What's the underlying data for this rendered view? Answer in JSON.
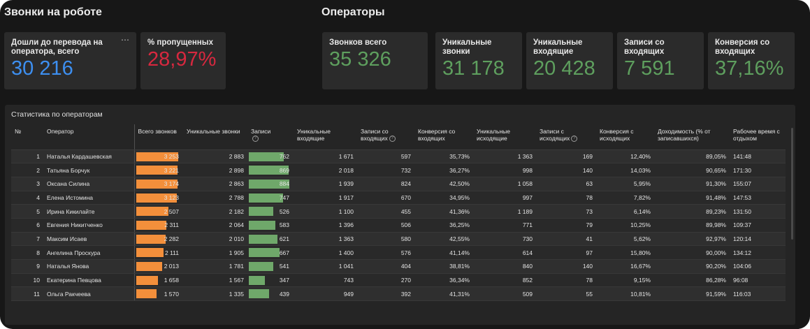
{
  "sections": {
    "calls_title": "Звонки на роботе",
    "operators_title": "Операторы"
  },
  "kpis": [
    {
      "label": "Дошли до перевода на оператора, всего",
      "value": "30 216",
      "color": "#3d8ff0"
    },
    {
      "label": "% пропущенных",
      "value": "28,97%",
      "color": "#d7283f"
    },
    {
      "label": "Звонков всего",
      "value": "35 326",
      "color": "#5e9f5e"
    },
    {
      "label": "Уникальные звонки",
      "value": "31 178",
      "color": "#5e9f5e"
    },
    {
      "label": "Уникальные входящие",
      "value": "20 428",
      "color": "#5e9f5e"
    },
    {
      "label": "Записи со входящих",
      "value": "7 591",
      "color": "#5e9f5e"
    },
    {
      "label": "Конверсия со входящих",
      "value": "37,16%",
      "color": "#5e9f5e"
    }
  ],
  "kpi_menu_icon": "more-horizontal-icon",
  "table": {
    "title": "Статистика по операторам",
    "columns": [
      "№",
      "Оператор",
      "Всего звонков",
      "Уникальные звонки",
      "Записи",
      "Уникальные входящие",
      "Записи со входящих",
      "Конверсия со входящих",
      "Уникальные исходящие",
      "Записи с исходящих",
      "Конверсия с исходящих",
      "Доходимость (% от записавшихся)",
      "Рабочее время с отдыхом"
    ],
    "help_icon": "question-circle-icon",
    "bar_colors": {
      "calls": "#f38f3b",
      "records": "#6fa86a"
    },
    "bar_max": {
      "calls": 3253,
      "records": 884
    },
    "rows": [
      {
        "n": "1",
        "name": "Наталья Кардашевская",
        "calls": "3 253",
        "calls_v": 3253,
        "unique": "2 883",
        "records": "762",
        "records_v": 762,
        "uniq_in": "1 671",
        "rec_in": "597",
        "conv_in": "35,73%",
        "uniq_out": "1 363",
        "rec_out": "169",
        "conv_out": "12,40%",
        "reach": "89,05%",
        "time": "141:48"
      },
      {
        "n": "2",
        "name": "Татьяна Борчук",
        "calls": "3 221",
        "calls_v": 3221,
        "unique": "2 898",
        "records": "869",
        "records_v": 869,
        "uniq_in": "2 018",
        "rec_in": "732",
        "conv_in": "36,27%",
        "uniq_out": "998",
        "rec_out": "140",
        "conv_out": "14,03%",
        "reach": "90,65%",
        "time": "171:30"
      },
      {
        "n": "3",
        "name": "Оксана Силина",
        "calls": "3 174",
        "calls_v": 3174,
        "unique": "2 863",
        "records": "884",
        "records_v": 884,
        "uniq_in": "1 939",
        "rec_in": "824",
        "conv_in": "42,50%",
        "uniq_out": "1 058",
        "rec_out": "63",
        "conv_out": "5,95%",
        "reach": "91,30%",
        "time": "155:07"
      },
      {
        "n": "4",
        "name": "Елена Истомина",
        "calls": "3 123",
        "calls_v": 3123,
        "unique": "2 788",
        "records": "747",
        "records_v": 747,
        "uniq_in": "1 917",
        "rec_in": "670",
        "conv_in": "34,95%",
        "uniq_out": "997",
        "rec_out": "78",
        "conv_out": "7,82%",
        "reach": "91,48%",
        "time": "147:53"
      },
      {
        "n": "5",
        "name": "Ирина Кикилайте",
        "calls": "2 507",
        "calls_v": 2507,
        "unique": "2 182",
        "records": "526",
        "records_v": 526,
        "uniq_in": "1 100",
        "rec_in": "455",
        "conv_in": "41,36%",
        "uniq_out": "1 189",
        "rec_out": "73",
        "conv_out": "6,14%",
        "reach": "89,23%",
        "time": "131:50"
      },
      {
        "n": "6",
        "name": "Евгения Никитченко",
        "calls": "2 311",
        "calls_v": 2311,
        "unique": "2 064",
        "records": "583",
        "records_v": 583,
        "uniq_in": "1 396",
        "rec_in": "506",
        "conv_in": "36,25%",
        "uniq_out": "771",
        "rec_out": "79",
        "conv_out": "10,25%",
        "reach": "89,98%",
        "time": "109:37"
      },
      {
        "n": "7",
        "name": "Максим Исаев",
        "calls": "2 282",
        "calls_v": 2282,
        "unique": "2 010",
        "records": "621",
        "records_v": 621,
        "uniq_in": "1 363",
        "rec_in": "580",
        "conv_in": "42,55%",
        "uniq_out": "730",
        "rec_out": "41",
        "conv_out": "5,62%",
        "reach": "92,97%",
        "time": "120:14"
      },
      {
        "n": "8",
        "name": "Ангелина Проскура",
        "calls": "2 111",
        "calls_v": 2111,
        "unique": "1 905",
        "records": "667",
        "records_v": 667,
        "uniq_in": "1 400",
        "rec_in": "576",
        "conv_in": "41,14%",
        "uniq_out": "614",
        "rec_out": "97",
        "conv_out": "15,80%",
        "reach": "90,00%",
        "time": "134:12"
      },
      {
        "n": "9",
        "name": "Наталья Янова",
        "calls": "2 013",
        "calls_v": 2013,
        "unique": "1 781",
        "records": "541",
        "records_v": 541,
        "uniq_in": "1 041",
        "rec_in": "404",
        "conv_in": "38,81%",
        "uniq_out": "840",
        "rec_out": "140",
        "conv_out": "16,67%",
        "reach": "90,20%",
        "time": "104:06"
      },
      {
        "n": "10",
        "name": "Екатерина Певцова",
        "calls": "1 658",
        "calls_v": 1658,
        "unique": "1 567",
        "records": "347",
        "records_v": 347,
        "uniq_in": "743",
        "rec_in": "270",
        "conv_in": "36,34%",
        "uniq_out": "852",
        "rec_out": "78",
        "conv_out": "9,15%",
        "reach": "86,28%",
        "time": "96:08"
      },
      {
        "n": "11",
        "name": "Ольга Ракчеева",
        "calls": "1 570",
        "calls_v": 1570,
        "unique": "1 335",
        "records": "439",
        "records_v": 439,
        "uniq_in": "949",
        "rec_in": "392",
        "conv_in": "41,31%",
        "uniq_out": "509",
        "rec_out": "55",
        "conv_out": "10,81%",
        "reach": "91,59%",
        "time": "116:03"
      }
    ]
  }
}
